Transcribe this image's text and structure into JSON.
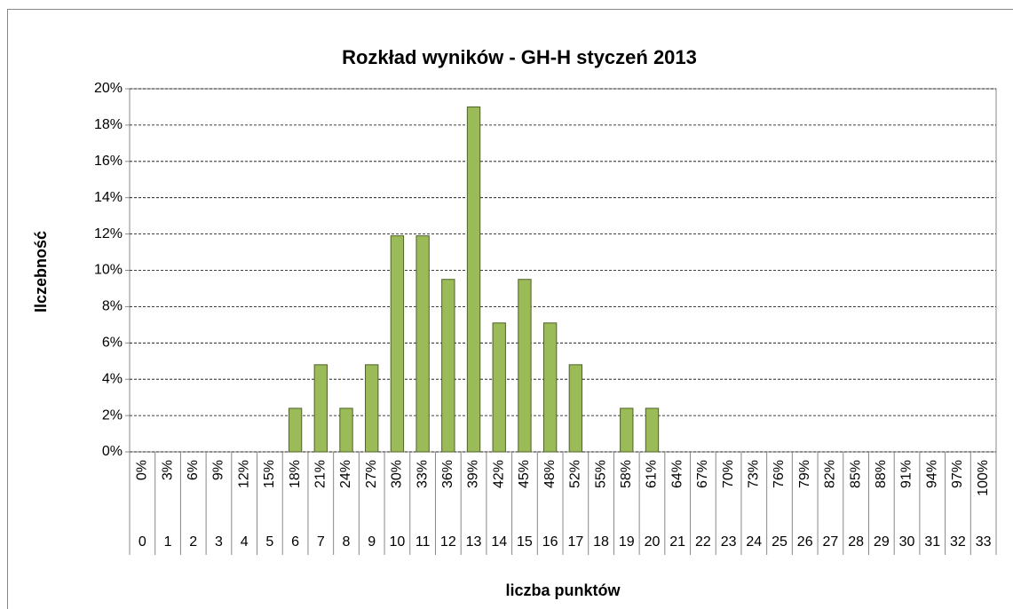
{
  "chart_data": {
    "type": "bar",
    "title": "Rozkład wyników - GH-H styczeń 2013",
    "y_label": "Ilczebność",
    "x_label": "liczba punktów",
    "categories": [
      "0",
      "1",
      "2",
      "3",
      "4",
      "5",
      "6",
      "7",
      "8",
      "9",
      "10",
      "11",
      "12",
      "13",
      "14",
      "15",
      "16",
      "17",
      "18",
      "19",
      "20",
      "21",
      "22",
      "23",
      "24",
      "25",
      "26",
      "27",
      "28",
      "29",
      "30",
      "31",
      "32",
      "33"
    ],
    "category_percents": [
      "0%",
      "3%",
      "6%",
      "9%",
      "12%",
      "15%",
      "18%",
      "21%",
      "24%",
      "27%",
      "30%",
      "33%",
      "36%",
      "39%",
      "42%",
      "45%",
      "48%",
      "52%",
      "55%",
      "58%",
      "61%",
      "64%",
      "67%",
      "70%",
      "73%",
      "76%",
      "79%",
      "82%",
      "85%",
      "88%",
      "91%",
      "94%",
      "97%",
      "100%"
    ],
    "values": [
      0,
      0,
      0,
      0,
      0,
      0,
      2.4,
      4.8,
      2.4,
      4.8,
      11.9,
      11.9,
      9.5,
      19,
      7.1,
      9.5,
      7.1,
      4.8,
      0,
      2.4,
      2.4,
      0,
      0,
      0,
      0,
      0,
      0,
      0,
      0,
      0,
      0,
      0,
      0,
      0
    ],
    "color": "#9bbb59",
    "ylim": [
      0,
      20
    ],
    "yticks": [
      {
        "value": 0,
        "label": "0%"
      },
      {
        "value": 2,
        "label": "2%"
      },
      {
        "value": 4,
        "label": "4%"
      },
      {
        "value": 6,
        "label": "6%"
      },
      {
        "value": 8,
        "label": "8%"
      },
      {
        "value": 10,
        "label": "10%"
      },
      {
        "value": 12,
        "label": "12%"
      },
      {
        "value": 14,
        "label": "14%"
      },
      {
        "value": 16,
        "label": "16%"
      },
      {
        "value": 18,
        "label": "18%"
      },
      {
        "value": 20,
        "label": "20%"
      }
    ],
    "grid": true
  }
}
